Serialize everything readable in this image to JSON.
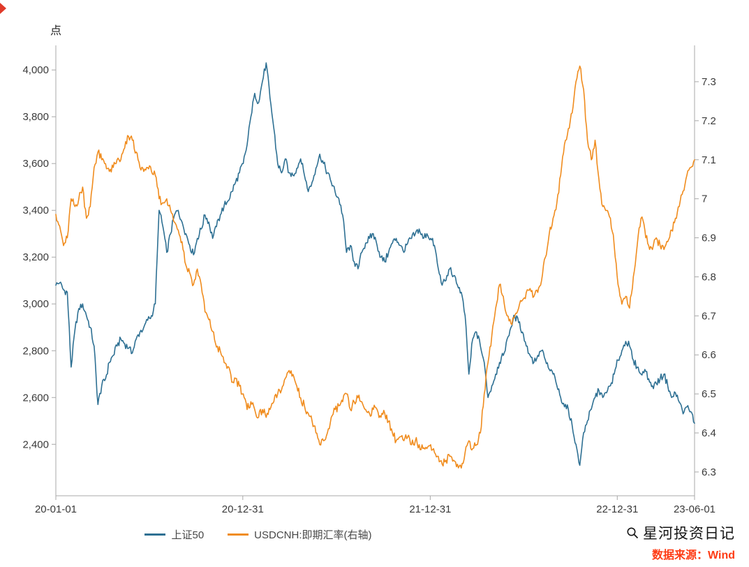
{
  "page": {
    "background": "#ffffff"
  },
  "chart_data": {
    "type": "line",
    "title": "",
    "y_left": {
      "unit": "点",
      "range": [
        2180,
        4105
      ],
      "ticks": [
        {
          "label": "4,000",
          "v": 4000
        },
        {
          "label": "3,800",
          "v": 3800
        },
        {
          "label": "3,600",
          "v": 3600
        },
        {
          "label": "3,400",
          "v": 3400
        },
        {
          "label": "3,200",
          "v": 3200
        },
        {
          "label": "3,000",
          "v": 3000
        },
        {
          "label": "2,800",
          "v": 2800
        },
        {
          "label": "2,600",
          "v": 2600
        },
        {
          "label": "2,400",
          "v": 2400
        }
      ]
    },
    "y_right": {
      "range": [
        6.239,
        7.393
      ],
      "ticks": [
        {
          "label": "7.3",
          "v": 7.3
        },
        {
          "label": "7.2",
          "v": 7.2
        },
        {
          "label": "7.1",
          "v": 7.1
        },
        {
          "label": "7",
          "v": 7.0
        },
        {
          "label": "6.9",
          "v": 6.9
        },
        {
          "label": "6.8",
          "v": 6.8
        },
        {
          "label": "6.7",
          "v": 6.7
        },
        {
          "label": "6.6",
          "v": 6.6
        },
        {
          "label": "6.5",
          "v": 6.5
        },
        {
          "label": "6.4",
          "v": 6.4
        },
        {
          "label": "6.3",
          "v": 6.3
        }
      ]
    },
    "x_axis": {
      "ticks": [
        {
          "label": "20-01-01",
          "t": 0.0
        },
        {
          "label": "20-12-31",
          "t": 0.2927
        },
        {
          "label": "21-12-31",
          "t": 0.5862
        },
        {
          "label": "22-12-31",
          "t": 0.879
        },
        {
          "label": "23-06-01",
          "t": 1.0
        }
      ]
    },
    "series": [
      {
        "name": "上证50",
        "axis": "left",
        "color": "#2e7093",
        "values": [
          3080,
          3090,
          3060,
          3050,
          2730,
          2890,
          2980,
          3000,
          2950,
          2900,
          2820,
          2570,
          2650,
          2680,
          2750,
          2780,
          2820,
          2850,
          2830,
          2810,
          2790,
          2850,
          2880,
          2900,
          2930,
          2950,
          3000,
          3400,
          3330,
          3220,
          3300,
          3380,
          3400,
          3350,
          3300,
          3250,
          3210,
          3280,
          3320,
          3380,
          3350,
          3280,
          3330,
          3380,
          3420,
          3440,
          3480,
          3520,
          3560,
          3600,
          3680,
          3800,
          3900,
          3860,
          3950,
          4030,
          3880,
          3750,
          3600,
          3560,
          3620,
          3560,
          3550,
          3580,
          3620,
          3550,
          3480,
          3520,
          3580,
          3640,
          3600,
          3560,
          3520,
          3480,
          3450,
          3380,
          3220,
          3250,
          3180,
          3150,
          3220,
          3260,
          3280,
          3300,
          3250,
          3200,
          3180,
          3220,
          3260,
          3280,
          3250,
          3220,
          3260,
          3280,
          3300,
          3320,
          3280,
          3300,
          3280,
          3250,
          3150,
          3080,
          3100,
          3150,
          3120,
          3080,
          3050,
          2950,
          2700,
          2850,
          2880,
          2820,
          2750,
          2600,
          2650,
          2700,
          2750,
          2780,
          2850,
          2900,
          2950,
          2920,
          2880,
          2820,
          2780,
          2750,
          2780,
          2800,
          2760,
          2720,
          2700,
          2650,
          2600,
          2560,
          2550,
          2480,
          2400,
          2310,
          2450,
          2500,
          2550,
          2600,
          2630,
          2600,
          2620,
          2650,
          2700,
          2760,
          2800,
          2840,
          2820,
          2760,
          2730,
          2700,
          2720,
          2680,
          2650,
          2660,
          2680,
          2700,
          2650,
          2600,
          2620,
          2580,
          2530,
          2560,
          2540,
          2490
        ]
      },
      {
        "name": "USDCNH:即期汇率(右轴)",
        "axis": "right",
        "color": "#f08c1e",
        "values": [
          6.96,
          6.93,
          6.88,
          6.9,
          7.0,
          6.98,
          7.0,
          7.03,
          6.95,
          6.98,
          7.08,
          7.12,
          7.1,
          7.09,
          7.07,
          7.08,
          7.1,
          7.1,
          7.13,
          7.16,
          7.15,
          7.12,
          7.08,
          7.07,
          7.08,
          7.07,
          7.06,
          7.0,
          6.99,
          7.0,
          6.97,
          6.94,
          6.92,
          6.89,
          6.83,
          6.81,
          6.78,
          6.82,
          6.78,
          6.71,
          6.69,
          6.66,
          6.62,
          6.61,
          6.58,
          6.57,
          6.53,
          6.54,
          6.52,
          6.5,
          6.46,
          6.48,
          6.46,
          6.44,
          6.46,
          6.44,
          6.46,
          6.48,
          6.5,
          6.51,
          6.54,
          6.56,
          6.55,
          6.52,
          6.49,
          6.47,
          6.45,
          6.43,
          6.4,
          6.37,
          6.38,
          6.4,
          6.44,
          6.46,
          6.47,
          6.48,
          6.5,
          6.46,
          6.48,
          6.49,
          6.48,
          6.46,
          6.45,
          6.46,
          6.46,
          6.44,
          6.45,
          6.43,
          6.4,
          6.38,
          6.39,
          6.38,
          6.39,
          6.37,
          6.38,
          6.37,
          6.36,
          6.36,
          6.37,
          6.35,
          6.34,
          6.32,
          6.33,
          6.34,
          6.33,
          6.32,
          6.31,
          6.35,
          6.38,
          6.36,
          6.37,
          6.4,
          6.5,
          6.58,
          6.65,
          6.72,
          6.78,
          6.75,
          6.7,
          6.68,
          6.7,
          6.72,
          6.74,
          6.76,
          6.77,
          6.75,
          6.76,
          6.79,
          6.85,
          6.91,
          6.95,
          6.99,
          7.06,
          7.14,
          7.18,
          7.22,
          7.3,
          7.34,
          7.28,
          7.15,
          7.1,
          7.15,
          7.05,
          6.98,
          6.97,
          6.95,
          6.88,
          6.78,
          6.73,
          6.75,
          6.72,
          6.8,
          6.88,
          6.95,
          6.92,
          6.88,
          6.87,
          6.9,
          6.88,
          6.87,
          6.89,
          6.92,
          6.95,
          6.98,
          7.02,
          7.06,
          7.08,
          7.1
        ]
      }
    ],
    "grid": "off",
    "legend_position": "bottom-center"
  },
  "legend": {
    "items": [
      {
        "label": "上证50",
        "color": "#2e7093"
      },
      {
        "label": "USDCNH:即期汇率(右轴)",
        "color": "#f08c1e"
      }
    ]
  },
  "footer": {
    "brand": "星河投资日记",
    "source": "数据来源：Wind",
    "source_color": "#fe3b14"
  }
}
